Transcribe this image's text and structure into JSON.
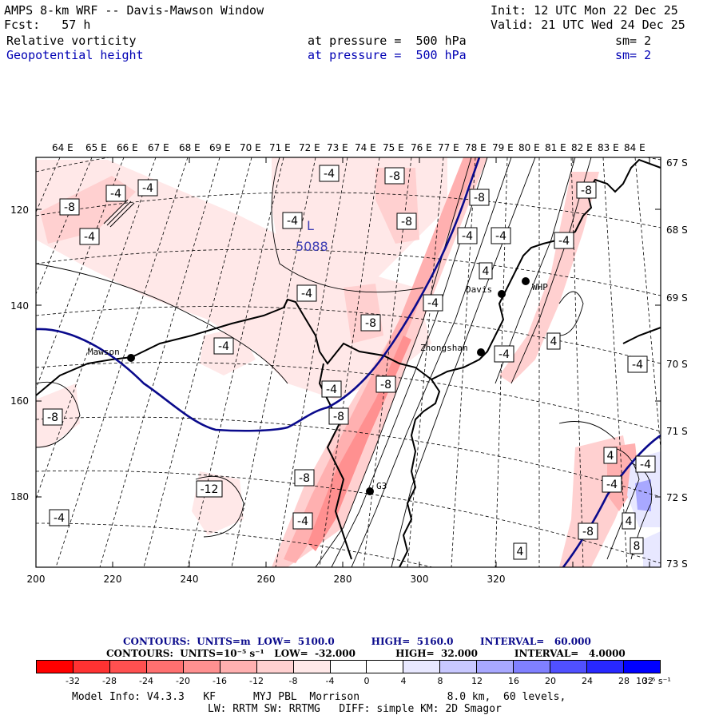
{
  "header": {
    "model_title": "AMPS 8-km WRF -- Davis-Mawson Window",
    "init": "Init: 12 UTC Mon 22 Dec 25",
    "forecast": "Fcst:   57 h",
    "valid": "Valid: 21 UTC Wed 24 Dec 25",
    "field1_name": "Relative vorticity",
    "field1_level": "at pressure =  500 hPa",
    "field1_sm": "sm= 2",
    "field2_name": "Geopotential height",
    "field2_level": "at pressure =  500 hPa",
    "field2_sm": "sm= 2"
  },
  "map": {
    "lon_labels": [
      "64 E",
      "65 E",
      "66 E",
      "67 E",
      "68 E",
      "69 E",
      "70 E",
      "71 E",
      "72 E",
      "73 E",
      "74 E",
      "75 E",
      "76 E",
      "77 E",
      "78 E",
      "79 E",
      "80 E",
      "81 E",
      "82 E",
      "83 E",
      "84 E"
    ],
    "lat_labels": [
      "67 S",
      "68 S",
      "69 S",
      "70 S",
      "71 S",
      "72 S",
      "73 S"
    ],
    "x_ticks": [
      "200",
      "220",
      "240",
      "260",
      "280",
      "300",
      "320"
    ],
    "y_ticks": [
      "120",
      "140",
      "160",
      "180"
    ],
    "stations": [
      "Mawson",
      "Davis",
      "WHP",
      "Zhongshan",
      "G3"
    ],
    "low_center": {
      "label": "L",
      "value": "5088"
    },
    "vorticity_labels": [
      "-8",
      "-4",
      "-4",
      "-4",
      "-8",
      "-4",
      "-4",
      "-8",
      "-8",
      "-4",
      "-8",
      "-4",
      "4",
      "-4",
      "-8",
      "-4",
      "-4",
      "4",
      "-4",
      "-4",
      "-8",
      "-4",
      "-8",
      "-4",
      "-8",
      "-8",
      "4",
      "-4",
      "-4",
      "-12",
      "-4",
      "-4",
      "-8",
      "4",
      "8",
      "4"
    ]
  },
  "contour_info": {
    "line1": "CONTOURS:  UNITS=m  LOW=  5100.0           HIGH=  5160.0        INTERVAL=   60.000",
    "line2": "CONTOURS:  UNITS=10⁻⁵ s⁻¹   LOW=  -32.000            HIGH=  32.000           INTERVAL=   4.0000"
  },
  "colorbar": {
    "labels": [
      "-32",
      "-28",
      "-24",
      "-20",
      "-16",
      "-12",
      "-8",
      "-4",
      "0",
      "4",
      "8",
      "12",
      "16",
      "20",
      "24",
      "28",
      "32"
    ],
    "units": "10⁻⁵ s⁻¹",
    "colors": [
      "#ff0000",
      "#ff3232",
      "#ff5050",
      "#ff7070",
      "#ff9090",
      "#ffb0b0",
      "#ffd0d0",
      "#ffe8e8",
      "#ffffff",
      "#ffffff",
      "#e8e8ff",
      "#c8c8ff",
      "#a8a8ff",
      "#8080ff",
      "#5050ff",
      "#2828ff",
      "#0000ff"
    ]
  },
  "model_info": {
    "line1": "Model Info: V4.3.3   KF      MYJ PBL  Morrison              8.0 km,  60 levels,",
    "line2": "LW: RRTM SW: RRTMG   DIFF: simple KM: 2D Smagor"
  }
}
